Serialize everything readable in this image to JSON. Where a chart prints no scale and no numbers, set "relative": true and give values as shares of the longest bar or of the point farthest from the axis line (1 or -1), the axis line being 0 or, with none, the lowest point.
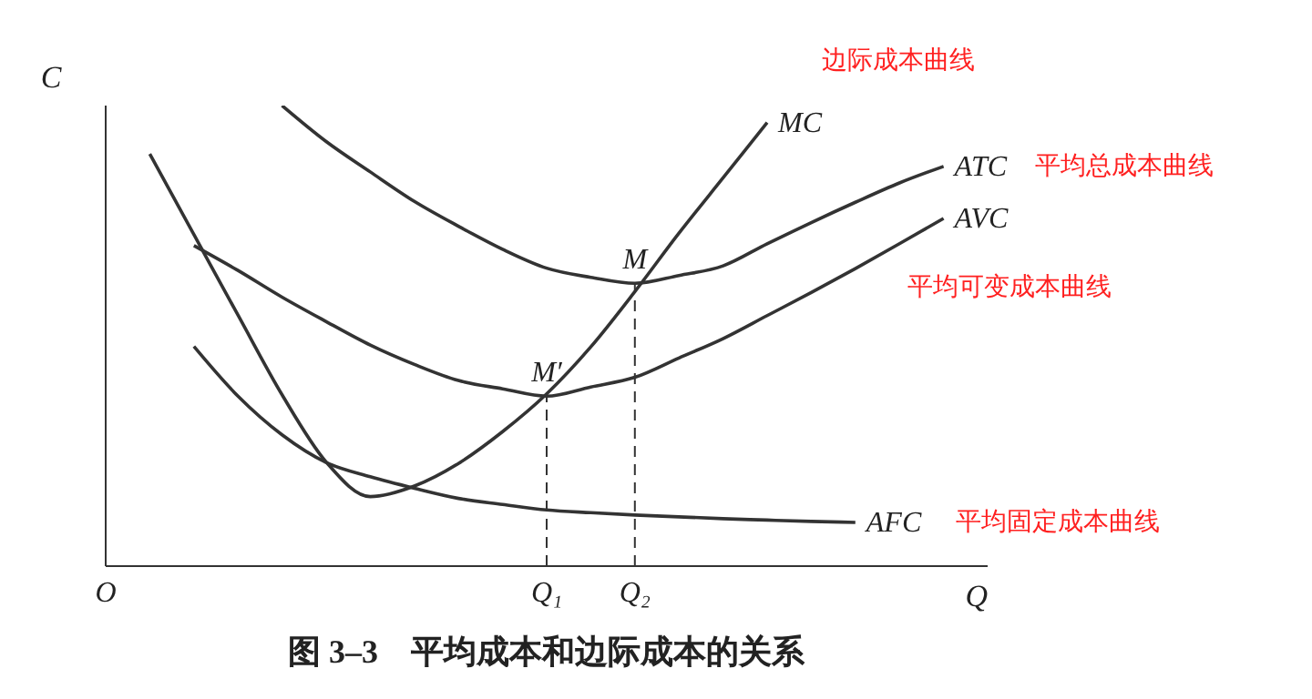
{
  "chart_data": {
    "type": "line",
    "title": "图 3–3　平均成本和边际成本的关系",
    "xlabel": "Q",
    "ylabel": "C",
    "relative": true,
    "categories": [
      "O",
      null,
      null,
      null,
      null,
      null,
      null,
      null,
      null,
      null,
      "Q₁",
      null,
      "Q₂",
      null,
      null,
      null,
      null,
      null,
      null,
      null,
      null
    ],
    "series": [
      {
        "name": "MC",
        "color": "#333333",
        "values": [
          null,
          0.895,
          0.72,
          0.545,
          0.372,
          0.226,
          0.151,
          0.174,
          0.223,
          0.292,
          0.374,
          0.476,
          0.596,
          0.723,
          0.843,
          0.963,
          null,
          null,
          null,
          null,
          null
        ]
      },
      {
        "name": "ATC",
        "color": "#333333",
        "values": [
          null,
          null,
          null,
          null,
          1,
          0.922,
          0.856,
          0.792,
          0.738,
          0.688,
          0.647,
          0.627,
          0.614,
          0.631,
          0.652,
          0.7,
          0.746,
          0.79,
          0.832,
          0.868,
          null
        ]
      },
      {
        "name": "AVC",
        "color": "#333333",
        "values": [
          null,
          null,
          0.696,
          0.642,
          0.584,
          0.531,
          0.48,
          0.438,
          0.403,
          0.385,
          0.369,
          0.389,
          0.41,
          0.452,
          0.494,
          0.544,
          0.594,
          0.646,
          0.7,
          0.755,
          null
        ]
      },
      {
        "name": "AFC",
        "color": "#333333",
        "values": [
          null,
          null,
          0.477,
          0.369,
          0.285,
          0.225,
          0.194,
          0.169,
          0.147,
          0.134,
          0.122,
          0.116,
          0.111,
          0.107,
          0.103,
          0.1,
          0.097,
          0.095,
          null,
          null,
          null
        ]
      }
    ],
    "ref_lines": [
      {
        "axis": "x",
        "value": "Q₁",
        "color": "#333333",
        "line_style": "dashed"
      },
      {
        "axis": "x",
        "value": "Q₂",
        "color": "#333333",
        "line_style": "dashed"
      }
    ],
    "annotations": [
      "边际成本曲线",
      "平均总成本曲线",
      "平均可变成本曲线",
      "平均固定成本曲线",
      {
        "text": "M′",
        "x": "Q₁",
        "y": 0.369
      },
      {
        "text": "M",
        "x": "Q₂",
        "y": 0.614
      }
    ]
  }
}
